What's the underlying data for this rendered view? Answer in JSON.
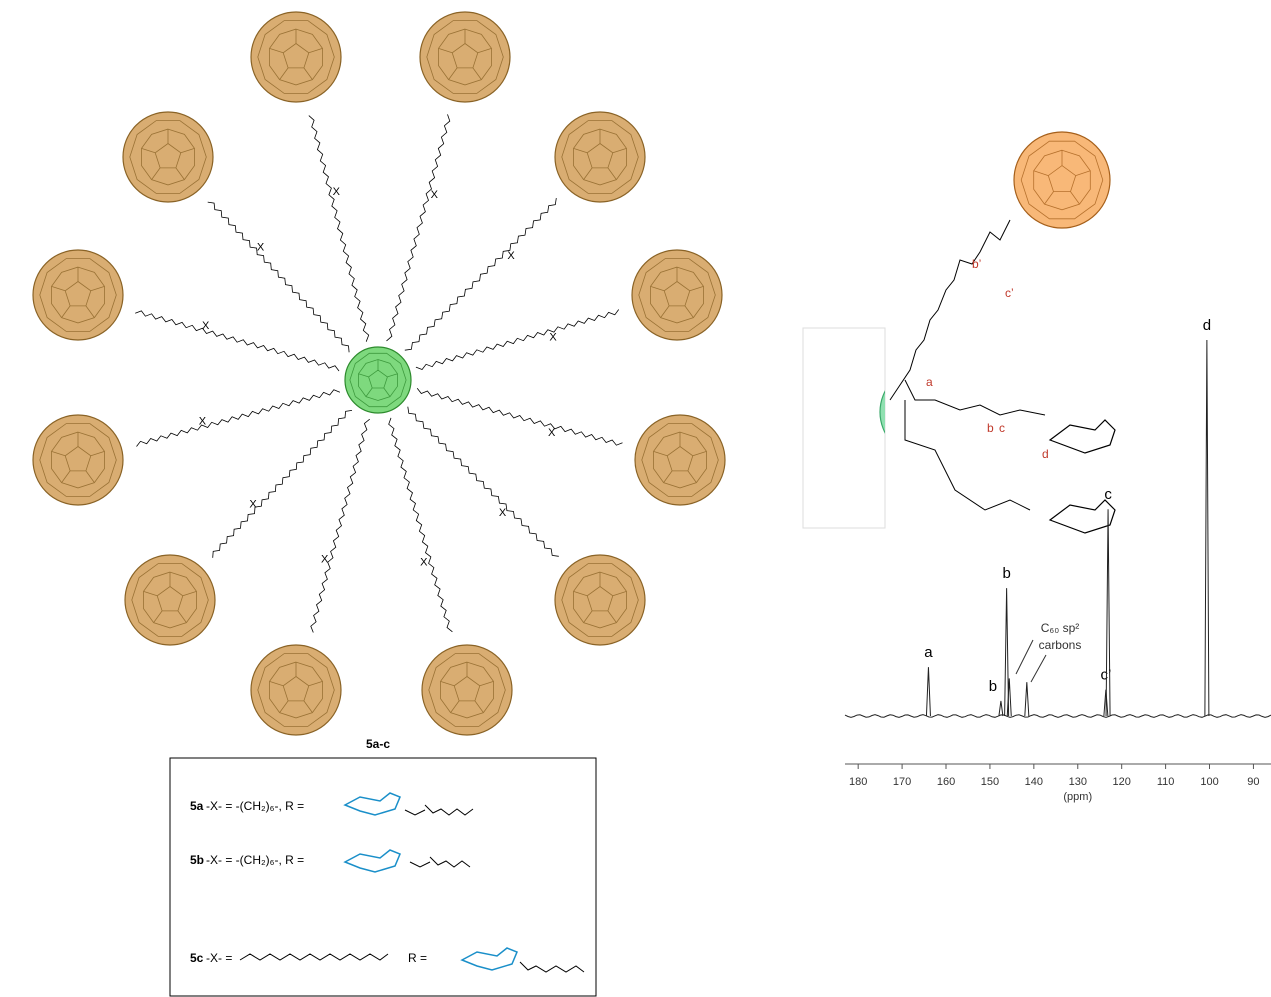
{
  "diagram": {
    "compound_label": "5a-c",
    "linker_label": "X"
  },
  "legend_box": {
    "rows": [
      {
        "id": "5a",
        "text": "-X- = -(CH₂)₆-, R ="
      },
      {
        "id": "5b",
        "text": "-X- = -(CH₂)₆-, R ="
      },
      {
        "id": "5c",
        "text": "-X- =",
        "text2": "R ="
      }
    ]
  },
  "structure": {
    "labels": {
      "b_prime": "b’",
      "c_prime": "c’",
      "a": "a",
      "b": "b",
      "c": "c",
      "d": "d"
    }
  },
  "spectrum": {
    "xlim": [
      183,
      86
    ],
    "xticks": [
      180,
      170,
      160,
      150,
      140,
      130,
      120,
      110,
      100,
      90
    ],
    "xlabel": "(ppm)",
    "annotation": "carbons",
    "annotation_title": "C₆₀ sp²",
    "peaks": [
      {
        "label": "a",
        "ppm": 164,
        "height": 13
      },
      {
        "label": "b",
        "ppm": 147.5,
        "height": 4
      },
      {
        "label": "b",
        "ppm": 146.2,
        "height": 34
      },
      {
        "label": null,
        "ppm": 145.6,
        "height": 10
      },
      {
        "label": null,
        "ppm": 141.6,
        "height": 9
      },
      {
        "label": "c’",
        "ppm": 123.6,
        "height": 7
      },
      {
        "label": "c",
        "ppm": 123.1,
        "height": 55
      },
      {
        "label": "d",
        "ppm": 100.6,
        "height": 100
      }
    ]
  }
}
